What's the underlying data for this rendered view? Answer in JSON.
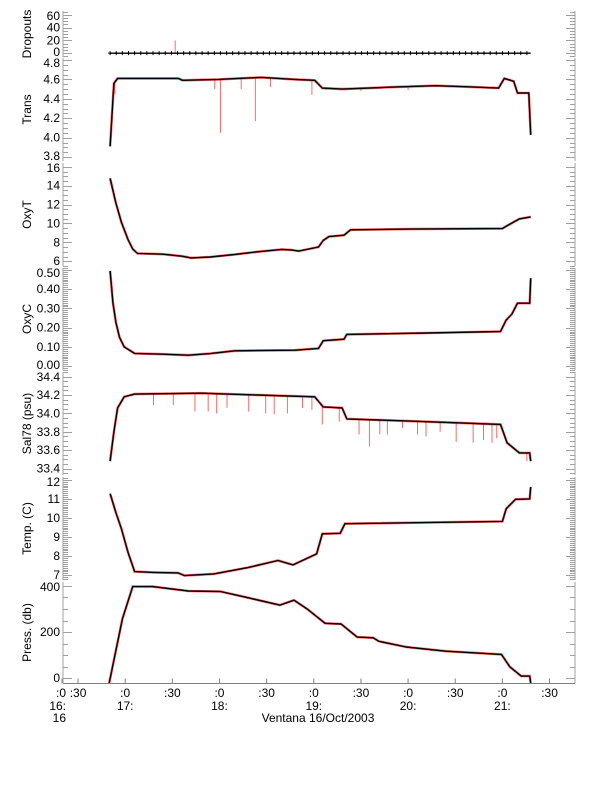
{
  "chart_data": {
    "type": "line",
    "title": "Ventana 16/Oct/2003",
    "xlabel": "Ventana 16/Oct/2003",
    "xlim": [
      16.33,
      21.77
    ],
    "x_units": "hours (local time, 16 Oct 2003)",
    "x_ticks": [
      {
        "x": 16.33,
        "label": ":0",
        "hour": "16:",
        "day": "16"
      },
      {
        "x": 16.5,
        "label": ":30",
        "hour": "",
        "day": ""
      },
      {
        "x": 17.0,
        "label": ":0",
        "hour": "17:",
        "day": ""
      },
      {
        "x": 17.5,
        "label": ":30",
        "hour": "",
        "day": ""
      },
      {
        "x": 18.0,
        "label": ":0",
        "hour": "18:",
        "day": ""
      },
      {
        "x": 18.5,
        "label": ":30",
        "hour": "",
        "day": ""
      },
      {
        "x": 19.0,
        "label": ":0",
        "hour": "19:",
        "day": ""
      },
      {
        "x": 19.5,
        "label": ":30",
        "hour": "",
        "day": ""
      },
      {
        "x": 20.0,
        "label": ":0",
        "hour": "20:",
        "day": ""
      },
      {
        "x": 20.5,
        "label": ":30",
        "hour": "",
        "day": ""
      },
      {
        "x": 21.0,
        "label": ":0",
        "hour": "21:",
        "day": ""
      },
      {
        "x": 21.5,
        "label": ":30",
        "hour": "",
        "day": ""
      }
    ],
    "colors": {
      "smoothed": "#000000",
      "raw": "#ff0000",
      "axis": "#a0a0a0"
    },
    "panels": [
      {
        "id": "dropouts",
        "ylabel": "Dropouts",
        "ylim": [
          -6,
          66
        ],
        "major": 20,
        "minor": 5,
        "tick_labels": [
          {
            "v": 0,
            "l": "0"
          },
          {
            "v": 20,
            "l": "20"
          },
          {
            "v": 40,
            "l": "40"
          },
          {
            "v": 60,
            "l": "60"
          }
        ],
        "line": [
          [
            16.84,
            0
          ],
          [
            21.3,
            0
          ]
        ],
        "markers": {
          "start": 16.84,
          "end": 21.3,
          "step": 0.065,
          "value": 0
        },
        "spikes": [
          [
            17.53,
            20
          ]
        ]
      },
      {
        "id": "trans",
        "ylabel": "Trans",
        "ylim": [
          3.76,
          4.82
        ],
        "major": 0.2,
        "minor": 0.05,
        "tick_labels": [
          {
            "v": 3.8,
            "l": "3.8"
          },
          {
            "v": 4.0,
            "l": "4.0"
          },
          {
            "v": 4.2,
            "l": "4.2"
          },
          {
            "v": 4.4,
            "l": "4.4"
          },
          {
            "v": 4.6,
            "l": "4.6"
          },
          {
            "v": 4.8,
            "l": "4.8"
          }
        ],
        "line": [
          [
            16.84,
            3.91
          ],
          [
            16.88,
            4.56
          ],
          [
            16.92,
            4.61
          ],
          [
            17.2,
            4.61
          ],
          [
            17.56,
            4.61
          ],
          [
            17.61,
            4.59
          ],
          [
            17.99,
            4.6
          ],
          [
            18.2,
            4.61
          ],
          [
            18.45,
            4.62
          ],
          [
            18.8,
            4.6
          ],
          [
            19.01,
            4.59
          ],
          [
            19.09,
            4.51
          ],
          [
            19.3,
            4.5
          ],
          [
            19.58,
            4.51
          ],
          [
            19.8,
            4.52
          ],
          [
            20.29,
            4.535
          ],
          [
            20.6,
            4.525
          ],
          [
            20.96,
            4.51
          ],
          [
            21.02,
            4.61
          ],
          [
            21.12,
            4.58
          ],
          [
            21.16,
            4.46
          ],
          [
            21.28,
            4.46
          ],
          [
            21.3,
            4.03
          ]
        ],
        "spikes": [
          [
            16.89,
            4.45
          ],
          [
            17.95,
            4.5
          ],
          [
            18.01,
            4.05
          ],
          [
            18.23,
            4.5
          ],
          [
            18.38,
            4.17
          ],
          [
            18.54,
            4.52
          ],
          [
            18.98,
            4.44
          ],
          [
            19.13,
            4.49
          ],
          [
            19.5,
            4.48
          ],
          [
            20.0,
            4.49
          ]
        ]
      },
      {
        "id": "oxyt",
        "ylabel": "OxyT",
        "ylim": [
          5.5,
          16.4
        ],
        "major": 2,
        "minor": 0.5,
        "tick_labels": [
          {
            "v": 6,
            "l": "6"
          },
          {
            "v": 8,
            "l": "8"
          },
          {
            "v": 10,
            "l": "10"
          },
          {
            "v": 12,
            "l": "12"
          },
          {
            "v": 14,
            "l": "14"
          },
          {
            "v": 16,
            "l": "16"
          }
        ],
        "line": [
          [
            16.84,
            14.78
          ],
          [
            16.9,
            12.2
          ],
          [
            16.96,
            10.12
          ],
          [
            17.03,
            8.3
          ],
          [
            17.08,
            7.3
          ],
          [
            17.13,
            6.83
          ],
          [
            17.4,
            6.75
          ],
          [
            17.6,
            6.54
          ],
          [
            17.7,
            6.36
          ],
          [
            17.9,
            6.45
          ],
          [
            18.16,
            6.72
          ],
          [
            18.4,
            7.0
          ],
          [
            18.66,
            7.26
          ],
          [
            18.76,
            7.2
          ],
          [
            18.84,
            7.08
          ],
          [
            19.05,
            7.51
          ],
          [
            19.1,
            8.2
          ],
          [
            19.16,
            8.61
          ],
          [
            19.32,
            8.76
          ],
          [
            19.39,
            9.33
          ],
          [
            20.0,
            9.4
          ],
          [
            21.0,
            9.47
          ],
          [
            21.05,
            9.76
          ],
          [
            21.18,
            10.48
          ],
          [
            21.3,
            10.7
          ]
        ],
        "spikes": []
      },
      {
        "id": "oxyc",
        "ylabel": "OxyC",
        "ylim": [
          -0.02,
          0.51
        ],
        "major": 0.1,
        "minor": 0.01,
        "tick_labels": [
          {
            "v": 0.0,
            "l": "0.00"
          },
          {
            "v": 0.1,
            "l": "0.10"
          },
          {
            "v": 0.2,
            "l": "0.20"
          },
          {
            "v": 0.3,
            "l": "0.30"
          },
          {
            "v": 0.4,
            "l": "0.40"
          },
          {
            "v": 0.5,
            "l": "0.50"
          }
        ],
        "line": [
          [
            16.84,
            0.495
          ],
          [
            16.87,
            0.33
          ],
          [
            16.9,
            0.23
          ],
          [
            16.94,
            0.15
          ],
          [
            16.99,
            0.1
          ],
          [
            17.1,
            0.066
          ],
          [
            17.4,
            0.062
          ],
          [
            17.67,
            0.057
          ],
          [
            17.9,
            0.065
          ],
          [
            18.16,
            0.08
          ],
          [
            18.5,
            0.082
          ],
          [
            18.8,
            0.083
          ],
          [
            19.05,
            0.092
          ],
          [
            19.1,
            0.132
          ],
          [
            19.32,
            0.14
          ],
          [
            19.35,
            0.165
          ],
          [
            20.2,
            0.172
          ],
          [
            20.98,
            0.18
          ],
          [
            21.04,
            0.24
          ],
          [
            21.1,
            0.27
          ],
          [
            21.16,
            0.327
          ],
          [
            21.29,
            0.327
          ],
          [
            21.3,
            0.457
          ]
        ],
        "spikes": []
      },
      {
        "id": "sal",
        "ylabel": "Sal78 (psu)",
        "ylim": [
          33.33,
          34.45
        ],
        "major": 0.2,
        "minor": 0.05,
        "tick_labels": [
          {
            "v": 33.4,
            "l": "33.4"
          },
          {
            "v": 33.6,
            "l": "33.6"
          },
          {
            "v": 33.8,
            "l": "33.8"
          },
          {
            "v": 34.0,
            "l": "34.0"
          },
          {
            "v": 34.2,
            "l": "34.2"
          },
          {
            "v": 34.4,
            "l": "34.4"
          }
        ],
        "line": [
          [
            16.84,
            33.48
          ],
          [
            16.88,
            33.8
          ],
          [
            16.92,
            34.06
          ],
          [
            16.99,
            34.18
          ],
          [
            17.1,
            34.21
          ],
          [
            17.81,
            34.22
          ],
          [
            18.4,
            34.2
          ],
          [
            19.01,
            34.18
          ],
          [
            19.1,
            34.07
          ],
          [
            19.3,
            34.06
          ],
          [
            19.35,
            33.94
          ],
          [
            20.2,
            33.91
          ],
          [
            20.98,
            33.88
          ],
          [
            21.05,
            33.68
          ],
          [
            21.18,
            33.57
          ],
          [
            21.29,
            33.57
          ],
          [
            21.3,
            33.48
          ]
        ],
        "spikes": [
          [
            17.3,
            34.09
          ],
          [
            17.51,
            34.09
          ],
          [
            17.74,
            34.02
          ],
          [
            17.88,
            34.02
          ],
          [
            17.97,
            34.0
          ],
          [
            18.08,
            34.06
          ],
          [
            18.31,
            34.02
          ],
          [
            18.49,
            34.0
          ],
          [
            18.58,
            33.99
          ],
          [
            18.72,
            34.0
          ],
          [
            18.88,
            34.06
          ],
          [
            18.98,
            34.04
          ],
          [
            19.09,
            33.88
          ],
          [
            19.27,
            33.91
          ],
          [
            19.48,
            33.77
          ],
          [
            19.59,
            33.64
          ],
          [
            19.7,
            33.77
          ],
          [
            19.78,
            33.77
          ],
          [
            19.94,
            33.84
          ],
          [
            20.1,
            33.77
          ],
          [
            20.19,
            33.75
          ],
          [
            20.34,
            33.8
          ],
          [
            20.51,
            33.69
          ],
          [
            20.69,
            33.68
          ],
          [
            20.8,
            33.71
          ],
          [
            20.89,
            33.68
          ],
          [
            20.94,
            33.73
          ],
          [
            21.26,
            33.48
          ]
        ]
      },
      {
        "id": "temp",
        "ylabel": "Temp. (C)",
        "ylim": [
          6.75,
          12.15
        ],
        "major": 1,
        "minor": 0.1,
        "tick_labels": [
          {
            "v": 7,
            "l": "7"
          },
          {
            "v": 8,
            "l": "8"
          },
          {
            "v": 9,
            "l": "9"
          },
          {
            "v": 10,
            "l": "10"
          },
          {
            "v": 11,
            "l": "11"
          },
          {
            "v": 12,
            "l": "12"
          }
        ],
        "line": [
          [
            16.84,
            11.28
          ],
          [
            16.9,
            10.3
          ],
          [
            16.96,
            9.44
          ],
          [
            17.03,
            8.2
          ],
          [
            17.1,
            7.19
          ],
          [
            17.3,
            7.15
          ],
          [
            17.56,
            7.12
          ],
          [
            17.63,
            6.98
          ],
          [
            17.94,
            7.07
          ],
          [
            18.3,
            7.4
          ],
          [
            18.62,
            7.77
          ],
          [
            18.78,
            7.54
          ],
          [
            19.03,
            8.12
          ],
          [
            19.09,
            9.17
          ],
          [
            19.28,
            9.2
          ],
          [
            19.33,
            9.7
          ],
          [
            21.0,
            9.82
          ],
          [
            21.04,
            10.49
          ],
          [
            21.14,
            10.98
          ],
          [
            21.29,
            11.0
          ],
          [
            21.3,
            11.63
          ]
        ],
        "spikes": []
      },
      {
        "id": "press",
        "ylabel": "Press. (db)",
        "ylim": [
          -21,
          417
        ],
        "major": 200,
        "minor": 50,
        "tick_labels": [
          {
            "v": 0,
            "l": "0"
          },
          {
            "v": 200,
            "l": "200"
          },
          {
            "v": 400,
            "l": "400"
          }
        ],
        "line": [
          [
            16.83,
            -21
          ],
          [
            16.97,
            257
          ],
          [
            17.08,
            397
          ],
          [
            17.29,
            397
          ],
          [
            17.67,
            378
          ],
          [
            18.01,
            376
          ],
          [
            18.26,
            353
          ],
          [
            18.64,
            317
          ],
          [
            18.79,
            338
          ],
          [
            18.93,
            300
          ],
          [
            19.12,
            238
          ],
          [
            19.29,
            235
          ],
          [
            19.46,
            178
          ],
          [
            19.63,
            175
          ],
          [
            19.69,
            160
          ],
          [
            19.98,
            135
          ],
          [
            20.4,
            117
          ],
          [
            20.99,
            103
          ],
          [
            21.08,
            49
          ],
          [
            21.2,
            9
          ],
          [
            21.29,
            9
          ],
          [
            21.3,
            -21
          ]
        ],
        "spikes": []
      }
    ]
  }
}
